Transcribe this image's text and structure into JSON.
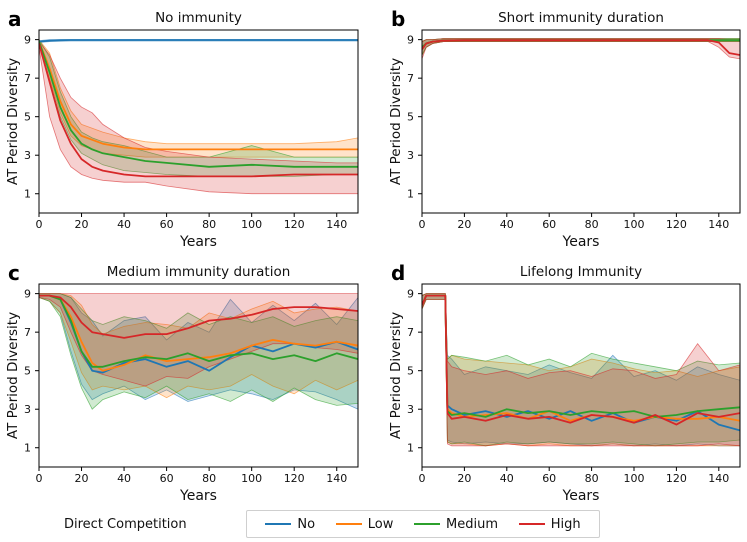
{
  "chart_data": [
    {
      "panel_letter": "a",
      "title": "No immunity",
      "type": "line",
      "xlabel": "Years",
      "ylabel": "AT Period Diversity",
      "xlim": [
        0,
        150
      ],
      "ylim": [
        0,
        9.5
      ],
      "xticks": [
        0,
        20,
        40,
        60,
        80,
        100,
        120,
        140
      ],
      "yticks": [
        1,
        3,
        5,
        7,
        9
      ],
      "x": [
        0,
        5,
        10,
        15,
        20,
        25,
        30,
        40,
        50,
        60,
        80,
        100,
        120,
        140,
        150
      ],
      "series": [
        {
          "name": "No",
          "values": [
            8.9,
            8.95,
            8.97,
            8.98,
            8.98,
            8.98,
            8.98,
            8.98,
            8.98,
            8.98,
            8.98,
            8.98,
            8.98,
            8.98,
            8.98
          ],
          "lower": [
            8.85,
            8.9,
            8.92,
            8.93,
            8.93,
            8.93,
            8.93,
            8.93,
            8.93,
            8.93,
            8.93,
            8.93,
            8.93,
            8.93,
            8.93
          ],
          "upper": [
            8.95,
            9.0,
            9.0,
            9.0,
            9.0,
            9.0,
            9.0,
            9.0,
            9.0,
            9.0,
            9.0,
            9.0,
            9.0,
            9.0,
            9.0
          ]
        },
        {
          "name": "Low",
          "values": [
            8.9,
            7.5,
            5.8,
            4.6,
            4.0,
            3.8,
            3.6,
            3.4,
            3.3,
            3.3,
            3.3,
            3.3,
            3.3,
            3.3,
            3.3
          ],
          "lower": [
            8.8,
            7.0,
            5.2,
            4.0,
            3.5,
            3.3,
            3.1,
            3.0,
            2.9,
            2.9,
            2.9,
            2.9,
            2.9,
            2.9,
            2.9
          ],
          "upper": [
            9.0,
            8.3,
            6.5,
            5.3,
            4.6,
            4.4,
            4.2,
            3.9,
            3.7,
            3.6,
            3.6,
            3.6,
            3.6,
            3.7,
            3.9
          ]
        },
        {
          "name": "Medium",
          "values": [
            8.9,
            7.3,
            5.5,
            4.3,
            3.6,
            3.3,
            3.1,
            2.9,
            2.7,
            2.6,
            2.4,
            2.5,
            2.4,
            2.4,
            2.4
          ],
          "lower": [
            8.8,
            6.8,
            5.0,
            3.8,
            3.1,
            2.8,
            2.5,
            2.2,
            2.1,
            2.0,
            1.9,
            1.9,
            1.9,
            2.0,
            2.0
          ],
          "upper": [
            9.0,
            8.1,
            6.3,
            5.0,
            4.2,
            3.9,
            3.7,
            3.5,
            3.2,
            2.9,
            2.9,
            3.5,
            2.9,
            2.9,
            2.9
          ]
        },
        {
          "name": "High",
          "values": [
            8.8,
            6.8,
            4.8,
            3.6,
            2.8,
            2.4,
            2.2,
            2.0,
            1.9,
            1.9,
            1.9,
            1.9,
            2.0,
            2.0,
            2.0
          ],
          "lower": [
            8.6,
            5.0,
            3.3,
            2.4,
            2.0,
            1.8,
            1.7,
            1.6,
            1.6,
            1.4,
            1.1,
            1.0,
            1.0,
            1.0,
            1.0
          ],
          "upper": [
            8.9,
            8.2,
            7.0,
            6.0,
            5.5,
            5.2,
            4.6,
            3.9,
            3.4,
            3.2,
            2.9,
            2.8,
            2.7,
            2.6,
            2.6
          ]
        }
      ]
    },
    {
      "panel_letter": "b",
      "title": "Short immunity duration",
      "type": "line",
      "xlabel": "Years",
      "ylabel": "AT Period Diversity",
      "xlim": [
        0,
        150
      ],
      "ylim": [
        0,
        9.5
      ],
      "xticks": [
        0,
        20,
        40,
        60,
        80,
        100,
        120,
        140
      ],
      "yticks": [
        1,
        3,
        5,
        7,
        9
      ],
      "x": [
        0,
        2,
        5,
        10,
        20,
        40,
        60,
        80,
        100,
        120,
        135,
        140,
        145,
        150
      ],
      "series": [
        {
          "name": "No",
          "values": [
            8.6,
            8.8,
            8.9,
            8.95,
            8.97,
            8.97,
            8.97,
            8.97,
            8.97,
            8.97,
            8.97,
            8.97,
            8.97,
            8.97
          ],
          "lower": [
            8.2,
            8.6,
            8.8,
            8.9,
            8.9,
            8.9,
            8.9,
            8.9,
            8.9,
            8.9,
            8.9,
            8.9,
            8.9,
            8.9
          ],
          "upper": [
            8.9,
            9.0,
            9.0,
            9.05,
            9.05,
            9.05,
            9.05,
            9.05,
            9.05,
            9.05,
            9.05,
            9.05,
            9.05,
            9.05
          ]
        },
        {
          "name": "Low",
          "values": [
            8.6,
            8.8,
            8.9,
            8.95,
            8.97,
            8.97,
            8.97,
            8.97,
            8.97,
            8.97,
            8.97,
            8.97,
            8.97,
            8.97
          ],
          "lower": [
            8.2,
            8.6,
            8.8,
            8.9,
            8.9,
            8.9,
            8.9,
            8.9,
            8.9,
            8.9,
            8.9,
            8.9,
            8.9,
            8.9
          ],
          "upper": [
            8.9,
            9.0,
            9.0,
            9.05,
            9.05,
            9.05,
            9.05,
            9.05,
            9.05,
            9.05,
            9.05,
            9.05,
            9.05,
            9.05
          ]
        },
        {
          "name": "Medium",
          "values": [
            8.6,
            8.8,
            8.9,
            8.95,
            8.97,
            8.97,
            8.97,
            8.97,
            8.97,
            8.97,
            8.97,
            8.97,
            8.97,
            8.97
          ],
          "lower": [
            8.2,
            8.6,
            8.8,
            8.9,
            8.9,
            8.9,
            8.9,
            8.9,
            8.9,
            8.9,
            8.9,
            8.9,
            8.9,
            8.9
          ],
          "upper": [
            8.9,
            9.0,
            9.0,
            9.05,
            9.05,
            9.05,
            9.05,
            9.05,
            9.05,
            9.05,
            9.05,
            9.05,
            9.05,
            9.05
          ]
        },
        {
          "name": "High",
          "values": [
            8.5,
            8.8,
            8.9,
            8.95,
            8.97,
            8.97,
            8.97,
            8.97,
            8.97,
            8.97,
            8.97,
            8.85,
            8.3,
            8.2
          ],
          "lower": [
            8.0,
            8.6,
            8.8,
            8.9,
            8.9,
            8.9,
            8.9,
            8.9,
            8.9,
            8.9,
            8.9,
            8.6,
            8.1,
            8.0
          ],
          "upper": [
            8.9,
            9.0,
            9.0,
            9.05,
            9.05,
            9.05,
            9.05,
            9.05,
            9.05,
            9.05,
            9.05,
            9.05,
            9.0,
            9.0
          ]
        }
      ]
    },
    {
      "panel_letter": "c",
      "title": "Medium immunity duration",
      "type": "line",
      "xlabel": "Years",
      "ylabel": "AT Period Diversity",
      "xlim": [
        0,
        150
      ],
      "ylim": [
        0,
        9.5
      ],
      "xticks": [
        0,
        20,
        40,
        60,
        80,
        100,
        120,
        140
      ],
      "yticks": [
        1,
        3,
        5,
        7,
        9
      ],
      "x": [
        0,
        5,
        10,
        15,
        20,
        25,
        30,
        40,
        50,
        60,
        70,
        80,
        90,
        100,
        110,
        120,
        130,
        140,
        150
      ],
      "series": [
        {
          "name": "No",
          "values": [
            8.9,
            8.9,
            8.7,
            7.5,
            6.0,
            5.0,
            4.9,
            5.4,
            5.6,
            5.2,
            5.5,
            5.0,
            5.7,
            6.3,
            6.0,
            6.4,
            6.2,
            6.5,
            6.1
          ],
          "lower": [
            8.8,
            8.6,
            8.0,
            6.0,
            4.3,
            3.5,
            3.8,
            4.2,
            3.5,
            4.0,
            3.4,
            3.7,
            4.0,
            3.8,
            3.5,
            4.0,
            3.9,
            3.5,
            3.0
          ],
          "upper": [
            9.0,
            9.0,
            9.0,
            8.8,
            8.0,
            7.6,
            6.8,
            7.6,
            7.8,
            6.6,
            7.5,
            7.0,
            8.7,
            7.5,
            8.4,
            7.6,
            8.5,
            7.4,
            8.8
          ]
        },
        {
          "name": "Low",
          "values": [
            8.9,
            8.9,
            8.7,
            7.8,
            6.5,
            5.4,
            5.0,
            5.3,
            5.8,
            5.5,
            5.6,
            5.7,
            5.9,
            6.3,
            6.6,
            6.4,
            6.3,
            6.5,
            6.3
          ],
          "lower": [
            8.8,
            8.6,
            8.0,
            6.5,
            4.9,
            4.0,
            4.2,
            4.0,
            4.2,
            3.6,
            4.2,
            4.0,
            4.2,
            4.8,
            4.2,
            3.8,
            4.5,
            4.0,
            4.5
          ],
          "upper": [
            9.0,
            9.0,
            9.0,
            8.9,
            8.4,
            7.4,
            6.9,
            7.3,
            7.5,
            7.4,
            7.2,
            8.0,
            7.7,
            8.2,
            8.6,
            8.0,
            8.2,
            8.3,
            8.1
          ]
        },
        {
          "name": "Medium",
          "values": [
            8.9,
            8.9,
            8.7,
            7.6,
            6.0,
            5.2,
            5.2,
            5.5,
            5.7,
            5.6,
            5.9,
            5.5,
            5.8,
            5.9,
            5.6,
            5.8,
            5.5,
            5.9,
            5.6
          ],
          "lower": [
            8.8,
            8.6,
            7.8,
            5.8,
            4.1,
            3.0,
            3.5,
            3.9,
            3.6,
            4.2,
            3.5,
            3.8,
            3.4,
            4.0,
            3.4,
            4.1,
            3.5,
            3.2,
            3.3
          ],
          "upper": [
            9.0,
            9.0,
            9.0,
            8.8,
            8.2,
            7.6,
            7.4,
            7.8,
            7.6,
            7.2,
            8.0,
            7.4,
            7.8,
            7.5,
            7.8,
            7.3,
            7.6,
            7.8,
            7.6
          ]
        },
        {
          "name": "High",
          "values": [
            8.9,
            8.9,
            8.8,
            8.3,
            7.5,
            7.0,
            6.9,
            6.7,
            6.9,
            6.9,
            7.2,
            7.6,
            7.7,
            7.9,
            8.2,
            8.3,
            8.3,
            8.2,
            8.1
          ],
          "lower": [
            8.8,
            8.7,
            8.3,
            7.0,
            5.8,
            5.0,
            4.8,
            4.5,
            4.2,
            4.7,
            4.6,
            5.2,
            5.6,
            6.0,
            6.4,
            6.4,
            6.2,
            6.1,
            5.9
          ],
          "upper": [
            9.0,
            9.0,
            9.0,
            9.0,
            9.0,
            9.0,
            9.0,
            9.0,
            9.0,
            9.0,
            9.0,
            9.0,
            9.0,
            9.0,
            9.0,
            9.0,
            9.0,
            9.0,
            9.0
          ]
        }
      ]
    },
    {
      "panel_letter": "d",
      "title": "Lifelong Immunity",
      "type": "line",
      "xlabel": "Years",
      "ylabel": "AT Period Diversity",
      "xlim": [
        0,
        150
      ],
      "ylim": [
        0,
        9.5
      ],
      "xticks": [
        0,
        20,
        40,
        60,
        80,
        100,
        120,
        140
      ],
      "yticks": [
        1,
        3,
        5,
        7,
        9
      ],
      "x": [
        0,
        2,
        11,
        12,
        14,
        20,
        30,
        40,
        50,
        60,
        70,
        80,
        90,
        100,
        110,
        120,
        130,
        140,
        150
      ],
      "series": [
        {
          "name": "No",
          "values": [
            8.4,
            8.9,
            8.9,
            3.2,
            3.0,
            2.7,
            2.9,
            2.6,
            2.9,
            2.5,
            2.9,
            2.4,
            2.8,
            2.3,
            2.6,
            2.4,
            2.9,
            2.2,
            1.9
          ],
          "lower": [
            8.2,
            8.7,
            8.7,
            1.4,
            1.3,
            1.2,
            1.3,
            1.2,
            1.2,
            1.3,
            1.2,
            1.1,
            1.2,
            1.1,
            1.2,
            1.1,
            1.2,
            1.1,
            1.1
          ],
          "upper": [
            8.9,
            9.0,
            9.0,
            5.8,
            5.6,
            4.8,
            5.2,
            5.0,
            4.8,
            5.3,
            4.9,
            4.6,
            5.8,
            4.7,
            5.0,
            4.5,
            5.2,
            4.8,
            4.5
          ]
        },
        {
          "name": "Low",
          "values": [
            8.4,
            8.9,
            8.9,
            3.0,
            2.8,
            2.6,
            2.7,
            2.8,
            2.5,
            2.9,
            2.4,
            2.7,
            2.6,
            2.4,
            2.6,
            2.5,
            2.5,
            2.6,
            2.4
          ],
          "lower": [
            8.2,
            8.7,
            8.7,
            1.3,
            1.2,
            1.2,
            1.1,
            1.2,
            1.1,
            1.2,
            1.1,
            1.1,
            1.2,
            1.1,
            1.1,
            1.1,
            1.1,
            1.1,
            1.1
          ],
          "upper": [
            8.9,
            9.0,
            9.0,
            5.6,
            5.8,
            5.6,
            5.5,
            5.4,
            5.3,
            5.0,
            5.2,
            5.6,
            5.4,
            5.1,
            4.9,
            5.0,
            4.7,
            5.0,
            5.2
          ]
        },
        {
          "name": "Medium",
          "values": [
            8.4,
            8.9,
            8.9,
            2.9,
            2.7,
            2.8,
            2.6,
            3.0,
            2.8,
            2.9,
            2.7,
            2.9,
            2.8,
            2.9,
            2.6,
            2.7,
            2.9,
            3.0,
            3.1
          ],
          "lower": [
            8.2,
            8.7,
            8.7,
            1.3,
            1.2,
            1.3,
            1.1,
            1.3,
            1.2,
            1.3,
            1.2,
            1.2,
            1.3,
            1.2,
            1.1,
            1.2,
            1.3,
            1.3,
            1.4
          ],
          "upper": [
            8.9,
            9.0,
            9.0,
            5.6,
            5.8,
            5.7,
            5.5,
            5.8,
            5.3,
            5.6,
            5.2,
            5.9,
            5.6,
            5.4,
            5.2,
            5.0,
            5.5,
            5.3,
            5.4
          ]
        },
        {
          "name": "High",
          "values": [
            8.4,
            8.9,
            8.9,
            2.8,
            2.5,
            2.6,
            2.4,
            2.7,
            2.5,
            2.6,
            2.3,
            2.7,
            2.6,
            2.3,
            2.7,
            2.2,
            2.8,
            2.6,
            2.8
          ],
          "lower": [
            8.2,
            8.7,
            8.7,
            1.2,
            1.1,
            1.1,
            1.1,
            1.2,
            1.1,
            1.1,
            1.1,
            1.1,
            1.1,
            1.1,
            1.1,
            1.1,
            1.1,
            1.2,
            1.1
          ],
          "upper": [
            8.9,
            9.0,
            9.0,
            5.5,
            5.2,
            5.0,
            4.8,
            5.0,
            4.6,
            4.9,
            5.0,
            4.7,
            5.1,
            5.0,
            4.6,
            4.8,
            6.4,
            5.0,
            5.3
          ]
        }
      ]
    }
  ],
  "legend": {
    "title": "Direct Competition",
    "placement": "bottom-center",
    "entries": [
      {
        "name": "No",
        "color": "#1f77b4"
      },
      {
        "name": "Low",
        "color": "#ff7f0e"
      },
      {
        "name": "Medium",
        "color": "#2ca02c"
      },
      {
        "name": "High",
        "color": "#d62728"
      }
    ]
  }
}
